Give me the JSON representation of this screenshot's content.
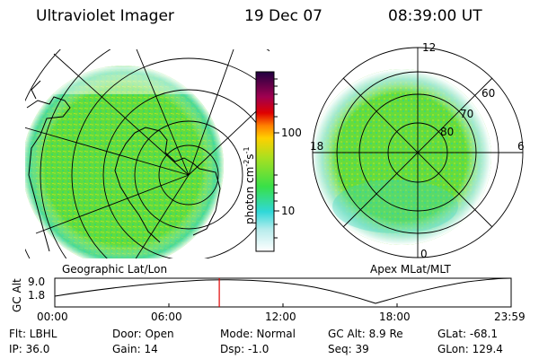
{
  "header": {
    "instrument": "Ultraviolet Imager",
    "date": "19 Dec 07",
    "time": "08:39:00 UT"
  },
  "geo_panel": {
    "caption": "Geographic Lat/Lon"
  },
  "apex_panel": {
    "caption": "Apex MLat/MLT",
    "mlt_labels": {
      "top": "12",
      "left": "18",
      "right": "6",
      "bottom": "0"
    },
    "mlat_labels": [
      "60",
      "70",
      "80"
    ]
  },
  "colorbar": {
    "unit_label": "photon cm",
    "unit_sup1": "-2",
    "unit_mid": "s",
    "unit_sup2": "-1",
    "ticks": [
      "100",
      "10"
    ],
    "scale": "log",
    "colors": [
      "#ffffff",
      "#b8ecec",
      "#30d8d8",
      "#38e048",
      "#a8e020",
      "#ffd000",
      "#ff8000",
      "#e00000",
      "#a00050",
      "#200040"
    ]
  },
  "altitude_plot": {
    "ylabel": "GC Alt",
    "yticks": [
      "9.0",
      "1.8"
    ],
    "xticks": [
      "00:00",
      "06:00",
      "12:00",
      "18:00",
      "23:59"
    ],
    "current_time_hours": 8.65,
    "line_color": "#e00000"
  },
  "info": {
    "flt": "Flt: LBHL",
    "ip": "IP: 36.0",
    "door": "Door: Open",
    "gain": "Gain: 14",
    "mode": "Mode: Normal",
    "dsp": "Dsp:   -1.0",
    "gc_alt": "GC Alt: 8.9 Re",
    "seq": "Seq: 39",
    "glat": "GLat: -68.1",
    "glon": "GLon: 129.4"
  }
}
